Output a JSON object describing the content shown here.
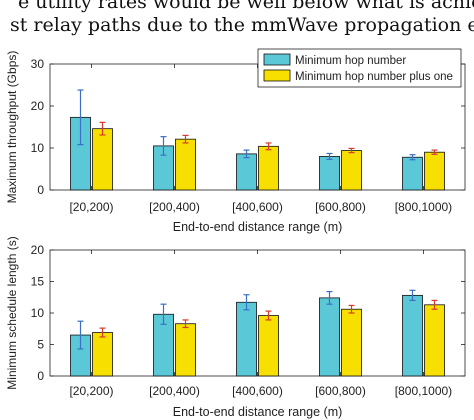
{
  "paper_lines": [
    "e utility rates would be well below what is achieve",
    "st relay paths due to the mmWave propagation effe"
  ],
  "colors": {
    "series1": "#5bc8d8",
    "series2": "#f7e000",
    "error1": "#3a6fc4",
    "error2": "#d63a2a"
  },
  "chart_data": [
    {
      "type": "bar",
      "title": "",
      "xlabel": "End-to-end distance range (m)",
      "ylabel": "Maximum throughput (Gbps)",
      "ylim": [
        0,
        30
      ],
      "yticks": [
        0,
        10,
        20,
        30
      ],
      "categories": [
        "[20,200)",
        "[200,400)",
        "[400,600)",
        "[600,800)",
        "[800,1000)"
      ],
      "legend_position": "top-right",
      "series": [
        {
          "name": "Minimum hop number",
          "values": [
            17.3,
            10.5,
            8.6,
            8.0,
            7.8
          ],
          "err": [
            6.5,
            2.2,
            0.9,
            0.7,
            0.6
          ]
        },
        {
          "name": "Minimum hop number plus one",
          "values": [
            14.6,
            12.1,
            10.4,
            9.4,
            9.0
          ],
          "err": [
            1.5,
            0.9,
            0.8,
            0.5,
            0.5
          ]
        }
      ]
    },
    {
      "type": "bar",
      "title": "",
      "xlabel": "End-to-end distance range (m)",
      "ylabel": "Minimum schedule length (s)",
      "ylim": [
        0,
        20
      ],
      "yticks": [
        0,
        5,
        10,
        15,
        20
      ],
      "categories": [
        "[20,200)",
        "[200,400)",
        "[400,600)",
        "[600,800)",
        "[800,1000)"
      ],
      "series": [
        {
          "values": [
            6.5,
            9.8,
            11.7,
            12.4,
            12.8
          ],
          "err": [
            2.2,
            1.6,
            1.2,
            1.0,
            0.8
          ]
        },
        {
          "values": [
            6.9,
            8.3,
            9.6,
            10.6,
            11.3
          ],
          "err": [
            0.7,
            0.6,
            0.7,
            0.6,
            0.7
          ]
        }
      ]
    }
  ]
}
